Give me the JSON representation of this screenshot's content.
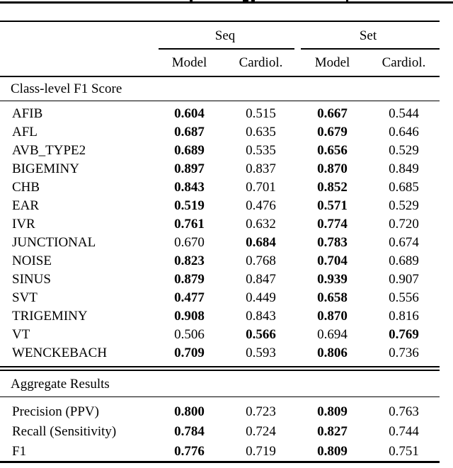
{
  "page": {
    "background": "#ffffff",
    "text_color": "#000000",
    "rule_color": "#000000"
  },
  "table": {
    "column_groups": [
      {
        "label": "Seq"
      },
      {
        "label": "Set"
      }
    ],
    "column_headers": [
      "Model",
      "Cardiol.",
      "Model",
      "Cardiol."
    ],
    "sections": [
      {
        "title": "Class-level F1 Score",
        "rows": [
          {
            "label": "AFIB",
            "values": [
              "0.604",
              "0.515",
              "0.667",
              "0.544"
            ],
            "bold": [
              true,
              false,
              true,
              false
            ]
          },
          {
            "label": "AFL",
            "values": [
              "0.687",
              "0.635",
              "0.679",
              "0.646"
            ],
            "bold": [
              true,
              false,
              true,
              false
            ]
          },
          {
            "label": "AVB_TYPE2",
            "values": [
              "0.689",
              "0.535",
              "0.656",
              "0.529"
            ],
            "bold": [
              true,
              false,
              true,
              false
            ]
          },
          {
            "label": "BIGEMINY",
            "values": [
              "0.897",
              "0.837",
              "0.870",
              "0.849"
            ],
            "bold": [
              true,
              false,
              true,
              false
            ]
          },
          {
            "label": "CHB",
            "values": [
              "0.843",
              "0.701",
              "0.852",
              "0.685"
            ],
            "bold": [
              true,
              false,
              true,
              false
            ]
          },
          {
            "label": "EAR",
            "values": [
              "0.519",
              "0.476",
              "0.571",
              "0.529"
            ],
            "bold": [
              true,
              false,
              true,
              false
            ]
          },
          {
            "label": "IVR",
            "values": [
              "0.761",
              "0.632",
              "0.774",
              "0.720"
            ],
            "bold": [
              true,
              false,
              true,
              false
            ]
          },
          {
            "label": "JUNCTIONAL",
            "values": [
              "0.670",
              "0.684",
              "0.783",
              "0.674"
            ],
            "bold": [
              false,
              true,
              true,
              false
            ]
          },
          {
            "label": "NOISE",
            "values": [
              "0.823",
              "0.768",
              "0.704",
              "0.689"
            ],
            "bold": [
              true,
              false,
              true,
              false
            ]
          },
          {
            "label": "SINUS",
            "values": [
              "0.879",
              "0.847",
              "0.939",
              "0.907"
            ],
            "bold": [
              true,
              false,
              true,
              false
            ]
          },
          {
            "label": "SVT",
            "values": [
              "0.477",
              "0.449",
              "0.658",
              "0.556"
            ],
            "bold": [
              true,
              false,
              true,
              false
            ]
          },
          {
            "label": "TRIGEMINY",
            "values": [
              "0.908",
              "0.843",
              "0.870",
              "0.816"
            ],
            "bold": [
              true,
              false,
              true,
              false
            ]
          },
          {
            "label": "VT",
            "values": [
              "0.506",
              "0.566",
              "0.694",
              "0.769"
            ],
            "bold": [
              false,
              true,
              false,
              true
            ]
          },
          {
            "label": "WENCKEBACH",
            "values": [
              "0.709",
              "0.593",
              "0.806",
              "0.736"
            ],
            "bold": [
              true,
              false,
              true,
              false
            ]
          }
        ]
      },
      {
        "title": "Aggregate Results",
        "rows": [
          {
            "label": "Precision (PPV)",
            "values": [
              "0.800",
              "0.723",
              "0.809",
              "0.763"
            ],
            "bold": [
              true,
              false,
              true,
              false
            ]
          },
          {
            "label": "Recall (Sensitivity)",
            "values": [
              "0.784",
              "0.724",
              "0.827",
              "0.744"
            ],
            "bold": [
              true,
              false,
              true,
              false
            ]
          },
          {
            "label": "F1",
            "values": [
              "0.776",
              "0.719",
              "0.809",
              "0.751"
            ],
            "bold": [
              true,
              false,
              true,
              false
            ]
          }
        ]
      }
    ]
  }
}
